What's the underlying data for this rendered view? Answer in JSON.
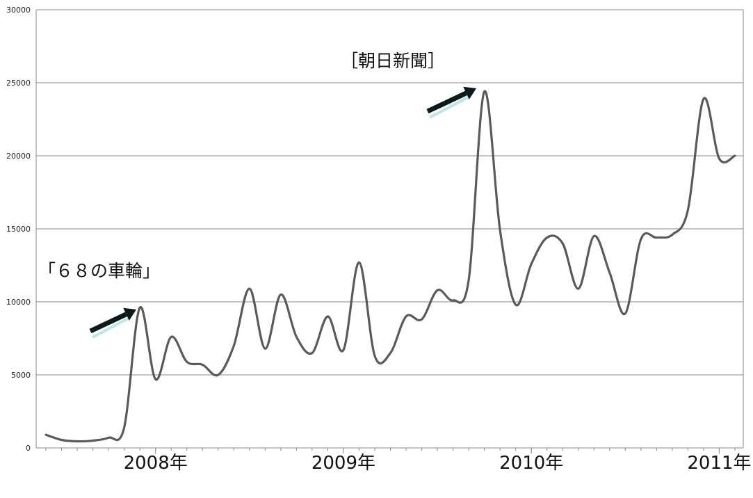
{
  "chart_data": {
    "type": "line",
    "title": "",
    "xlabel": "",
    "ylabel": "",
    "ylim": [
      0,
      30000
    ],
    "yticks": [
      0,
      5000,
      10000,
      15000,
      20000,
      25000,
      30000
    ],
    "grid": true,
    "legend": "none",
    "x_tick_labels": [
      {
        "label": "2008年",
        "month_index": 7
      },
      {
        "label": "2009年",
        "month_index": 19
      },
      {
        "label": "2010年",
        "month_index": 31
      },
      {
        "label": "2011年",
        "month_index": 43
      }
    ],
    "series": [
      {
        "name": "",
        "color": "#5a5a5a",
        "x": [
          0,
          1,
          2,
          3,
          4,
          5,
          6,
          7,
          8,
          9,
          10,
          11,
          12,
          13,
          14,
          15,
          16,
          17,
          18,
          19,
          20,
          21,
          22,
          23,
          24,
          25,
          26,
          27,
          28,
          29,
          30,
          31,
          32,
          33,
          34,
          35,
          36,
          37,
          38,
          39,
          40,
          41,
          42,
          43,
          44
        ],
        "values": [
          900,
          550,
          450,
          500,
          700,
          1400,
          9600,
          4700,
          7600,
          5900,
          5700,
          5000,
          7000,
          10900,
          6800,
          10500,
          7600,
          6500,
          9000,
          6700,
          12700,
          6300,
          6500,
          9000,
          8800,
          10800,
          10100,
          11500,
          24400,
          14900,
          9800,
          12600,
          14400,
          14000,
          10900,
          14500,
          12000,
          9200,
          14300,
          14400,
          14600,
          16300,
          23900,
          19800,
          20000
        ]
      }
    ],
    "annotations": [
      {
        "text": "［朝日新聞］",
        "x": 26.5,
        "y": 26800
      },
      {
        "text": "「６８の車輪」",
        "x": 0,
        "y": 12000
      }
    ]
  }
}
